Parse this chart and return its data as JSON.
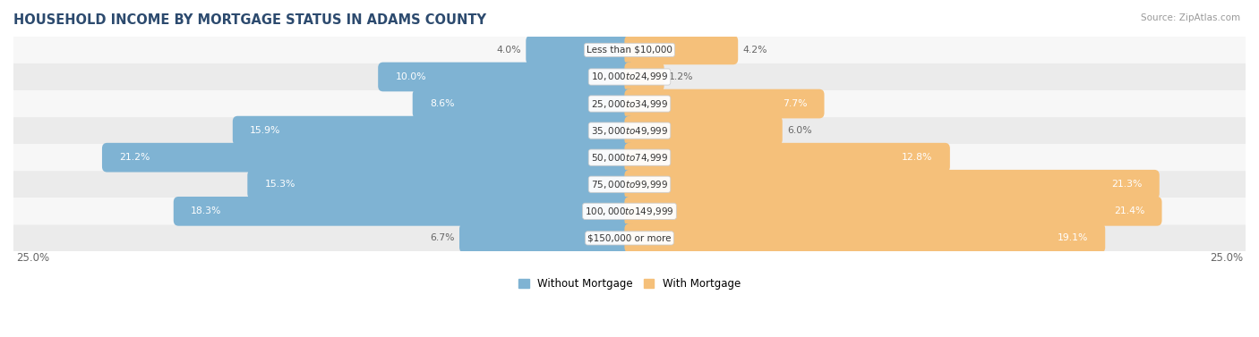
{
  "title": "HOUSEHOLD INCOME BY MORTGAGE STATUS IN ADAMS COUNTY",
  "source": "Source: ZipAtlas.com",
  "categories": [
    "Less than $10,000",
    "$10,000 to $24,999",
    "$25,000 to $34,999",
    "$35,000 to $49,999",
    "$50,000 to $74,999",
    "$75,000 to $99,999",
    "$100,000 to $149,999",
    "$150,000 or more"
  ],
  "without_mortgage": [
    4.0,
    10.0,
    8.6,
    15.9,
    21.2,
    15.3,
    18.3,
    6.7
  ],
  "with_mortgage": [
    4.2,
    1.2,
    7.7,
    6.0,
    12.8,
    21.3,
    21.4,
    19.1
  ],
  "bar_color_without": "#7fb3d3",
  "bar_color_with": "#f5c07a",
  "title_color": "#2c4a6e",
  "source_color": "#999999",
  "label_color_outside": "#666666",
  "label_color_inside": "#ffffff",
  "axis_label_color": "#666666",
  "xlim": 25.0,
  "legend_without": "Without Mortgage",
  "legend_with": "With Mortgage",
  "row_bg_colors": [
    "#f7f7f7",
    "#ebebeb"
  ]
}
